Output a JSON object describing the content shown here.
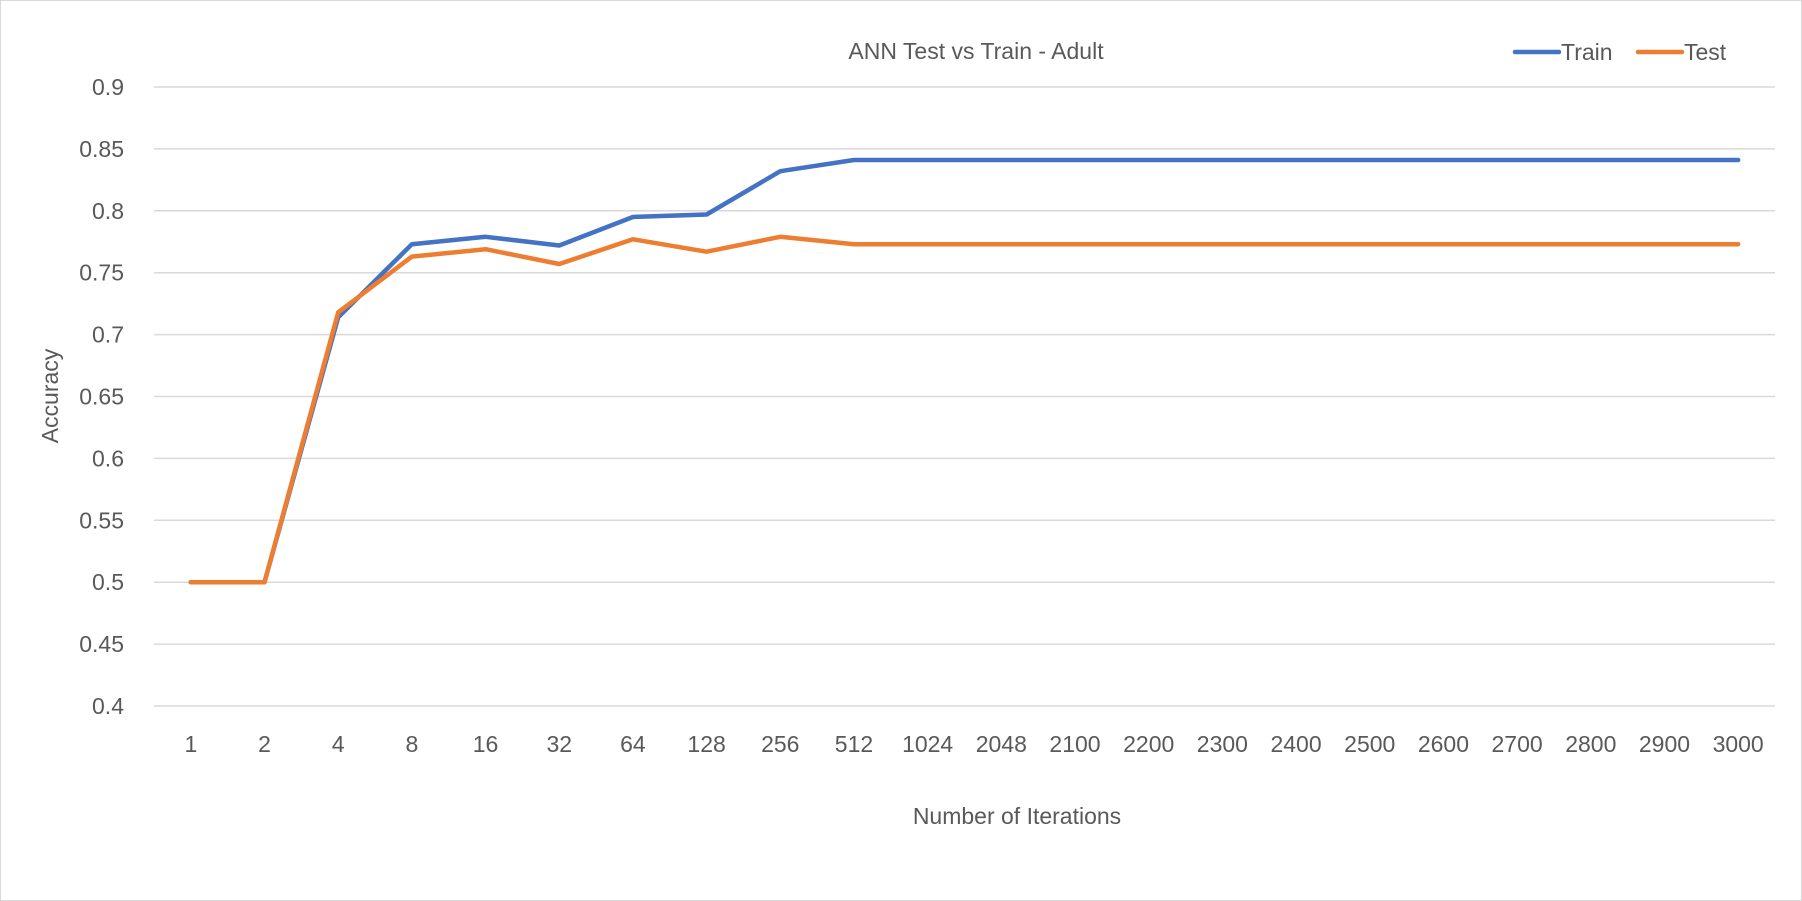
{
  "chart_data": {
    "type": "line",
    "title": "ANN Test vs Train - Adult",
    "xlabel": "Number of Iterations",
    "ylabel": "Accuracy",
    "categories": [
      "1",
      "2",
      "4",
      "8",
      "16",
      "32",
      "64",
      "128",
      "256",
      "512",
      "1024",
      "2048",
      "2100",
      "2200",
      "2300",
      "2400",
      "2500",
      "2600",
      "2700",
      "2800",
      "2900",
      "3000"
    ],
    "ylim": [
      0.4,
      0.9
    ],
    "yticks": [
      "0.4",
      "0.45",
      "0.5",
      "0.55",
      "0.6",
      "0.65",
      "0.7",
      "0.75",
      "0.8",
      "0.85",
      "0.9"
    ],
    "grid": true,
    "legend_position": "top-right",
    "series": [
      {
        "name": "Train",
        "color": "#4472c4",
        "values": [
          0.5,
          0.5,
          0.714,
          0.773,
          0.779,
          0.772,
          0.795,
          0.797,
          0.832,
          0.841,
          0.841,
          0.841,
          0.841,
          0.841,
          0.841,
          0.841,
          0.841,
          0.841,
          0.841,
          0.841,
          0.841,
          0.841
        ]
      },
      {
        "name": "Test",
        "color": "#ed7d31",
        "values": [
          0.5,
          0.5,
          0.718,
          0.763,
          0.769,
          0.757,
          0.777,
          0.767,
          0.779,
          0.773,
          0.773,
          0.773,
          0.773,
          0.773,
          0.773,
          0.773,
          0.773,
          0.773,
          0.773,
          0.773,
          0.773,
          0.773
        ]
      }
    ]
  }
}
